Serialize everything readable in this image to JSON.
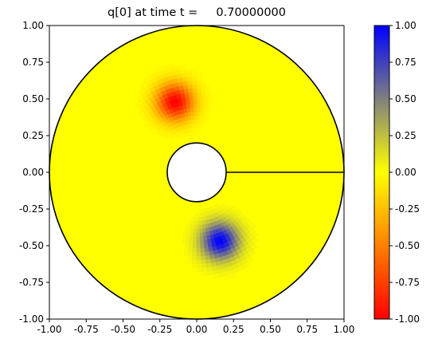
{
  "chart_data": {
    "type": "heatmap",
    "title": "q[0] at time t =     0.70000000",
    "xlabel": "",
    "ylabel": "",
    "xlim": [
      -1.0,
      1.0
    ],
    "ylim": [
      -1.0,
      1.0
    ],
    "x_ticks": [
      "-1.00",
      "-0.75",
      "-0.50",
      "-0.25",
      "0.00",
      "0.25",
      "0.50",
      "0.75",
      "1.00"
    ],
    "y_ticks": [
      "1.00",
      "0.75",
      "0.50",
      "0.25",
      "0.00",
      "-0.25",
      "-0.50",
      "-0.75",
      "-1.00"
    ],
    "grid": false,
    "domain": {
      "outer_radius": 1.0,
      "inner_radius": 0.2,
      "cut_line": {
        "from": [
          0.2,
          0.0
        ],
        "to": [
          1.0,
          0.0
        ]
      }
    },
    "background_value": 0.0,
    "blobs": [
      {
        "value": -1.0,
        "center": [
          -0.15,
          0.48
        ],
        "sigma": 0.09
      },
      {
        "value": 1.0,
        "center": [
          0.16,
          -0.47
        ],
        "sigma": 0.09
      }
    ],
    "colorbar": {
      "range": [
        -1.0,
        1.0
      ],
      "ticks": [
        "1.00",
        "0.75",
        "0.50",
        "0.25",
        "0.00",
        "-0.25",
        "-0.50",
        "-0.75",
        "-1.00"
      ],
      "colors": {
        "min": "#ff0000",
        "mid": "#ffff00",
        "max": "#0000ff"
      }
    }
  }
}
